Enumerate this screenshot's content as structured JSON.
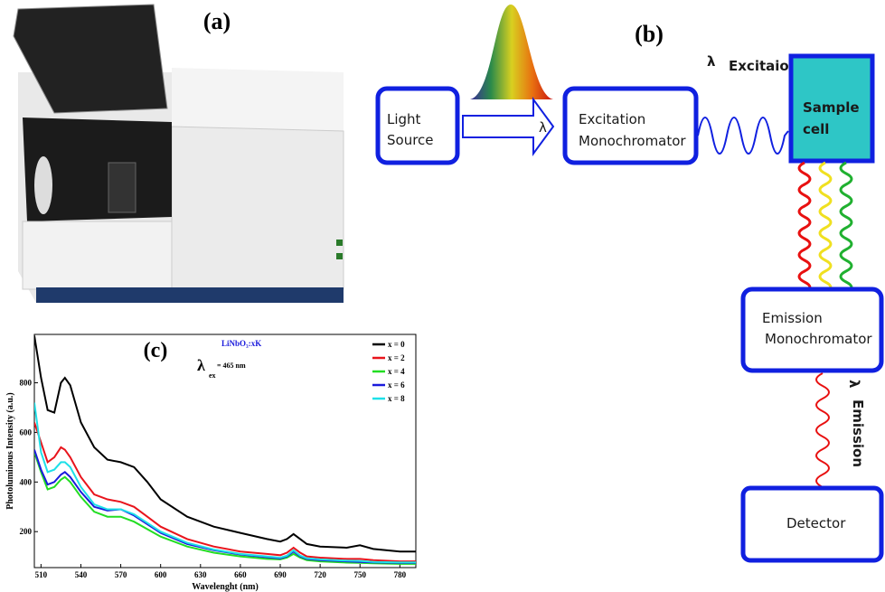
{
  "photo": {
    "label": "(a)"
  },
  "diagram": {
    "label": "(b)",
    "light_source": [
      "Light",
      "Source"
    ],
    "arrow_symbol": "λ",
    "excitation": [
      "Excitation",
      "Monochromator"
    ],
    "excitation_lambda": {
      "symbol": "λ",
      "text": "Excitaion"
    },
    "sample": [
      "Sample",
      "cell"
    ],
    "emission": [
      "Emission",
      "Monochromator"
    ],
    "emission_lambda": {
      "symbol": "λ",
      "text": "Emission"
    },
    "detector": "Detector"
  },
  "chart_data": {
    "type": "line",
    "label": "(c)",
    "annotation": "LiNbO₃:xK",
    "excitation": {
      "symbol": "λ",
      "sub": "ex",
      "text": "= 465 nm"
    },
    "xlabel": "Wavelenght (nm)",
    "ylabel": "Photoluminous Intensity (a.u.)",
    "xlim": [
      505,
      792
    ],
    "ylim": [
      55,
      995
    ],
    "xticks": [
      510,
      540,
      570,
      600,
      630,
      660,
      690,
      720,
      750,
      780
    ],
    "yticks": [
      200,
      400,
      600,
      800
    ],
    "legend": "upper right",
    "x": [
      505,
      510,
      515,
      520,
      525,
      528,
      532,
      540,
      550,
      560,
      570,
      580,
      590,
      600,
      620,
      640,
      660,
      680,
      690,
      695,
      700,
      705,
      710,
      720,
      740,
      750,
      760,
      780,
      792
    ],
    "series": [
      {
        "name": "x = 0",
        "color": "#000000",
        "values": [
          990,
          820,
          690,
          680,
          800,
          820,
          790,
          640,
          540,
          490,
          480,
          460,
          400,
          330,
          260,
          220,
          195,
          170,
          160,
          170,
          190,
          170,
          150,
          140,
          135,
          145,
          130,
          120,
          120
        ]
      },
      {
        "name": "x = 2",
        "color": "#e8141c",
        "values": [
          640,
          560,
          480,
          500,
          540,
          530,
          500,
          420,
          350,
          330,
          320,
          300,
          260,
          220,
          170,
          140,
          120,
          110,
          105,
          115,
          135,
          115,
          100,
          95,
          90,
          90,
          85,
          80,
          80
        ]
      },
      {
        "name": "x = 4",
        "color": "#22dd22",
        "values": [
          520,
          440,
          370,
          380,
          410,
          420,
          400,
          340,
          280,
          260,
          260,
          240,
          210,
          180,
          140,
          115,
          100,
          90,
          88,
          95,
          110,
          95,
          85,
          80,
          75,
          74,
          72,
          70,
          70
        ]
      },
      {
        "name": "x = 6",
        "color": "#1a1adc",
        "values": [
          530,
          450,
          390,
          400,
          430,
          440,
          420,
          360,
          300,
          285,
          290,
          265,
          230,
          195,
          150,
          125,
          108,
          97,
          92,
          100,
          120,
          100,
          90,
          85,
          80,
          78,
          76,
          74,
          74
        ]
      },
      {
        "name": "x = 8",
        "color": "#1ee0e8",
        "values": [
          720,
          520,
          440,
          450,
          480,
          480,
          460,
          380,
          310,
          290,
          290,
          270,
          235,
          200,
          155,
          128,
          110,
          100,
          95,
          103,
          125,
          103,
          93,
          88,
          83,
          82,
          78,
          76,
          76
        ]
      }
    ]
  }
}
